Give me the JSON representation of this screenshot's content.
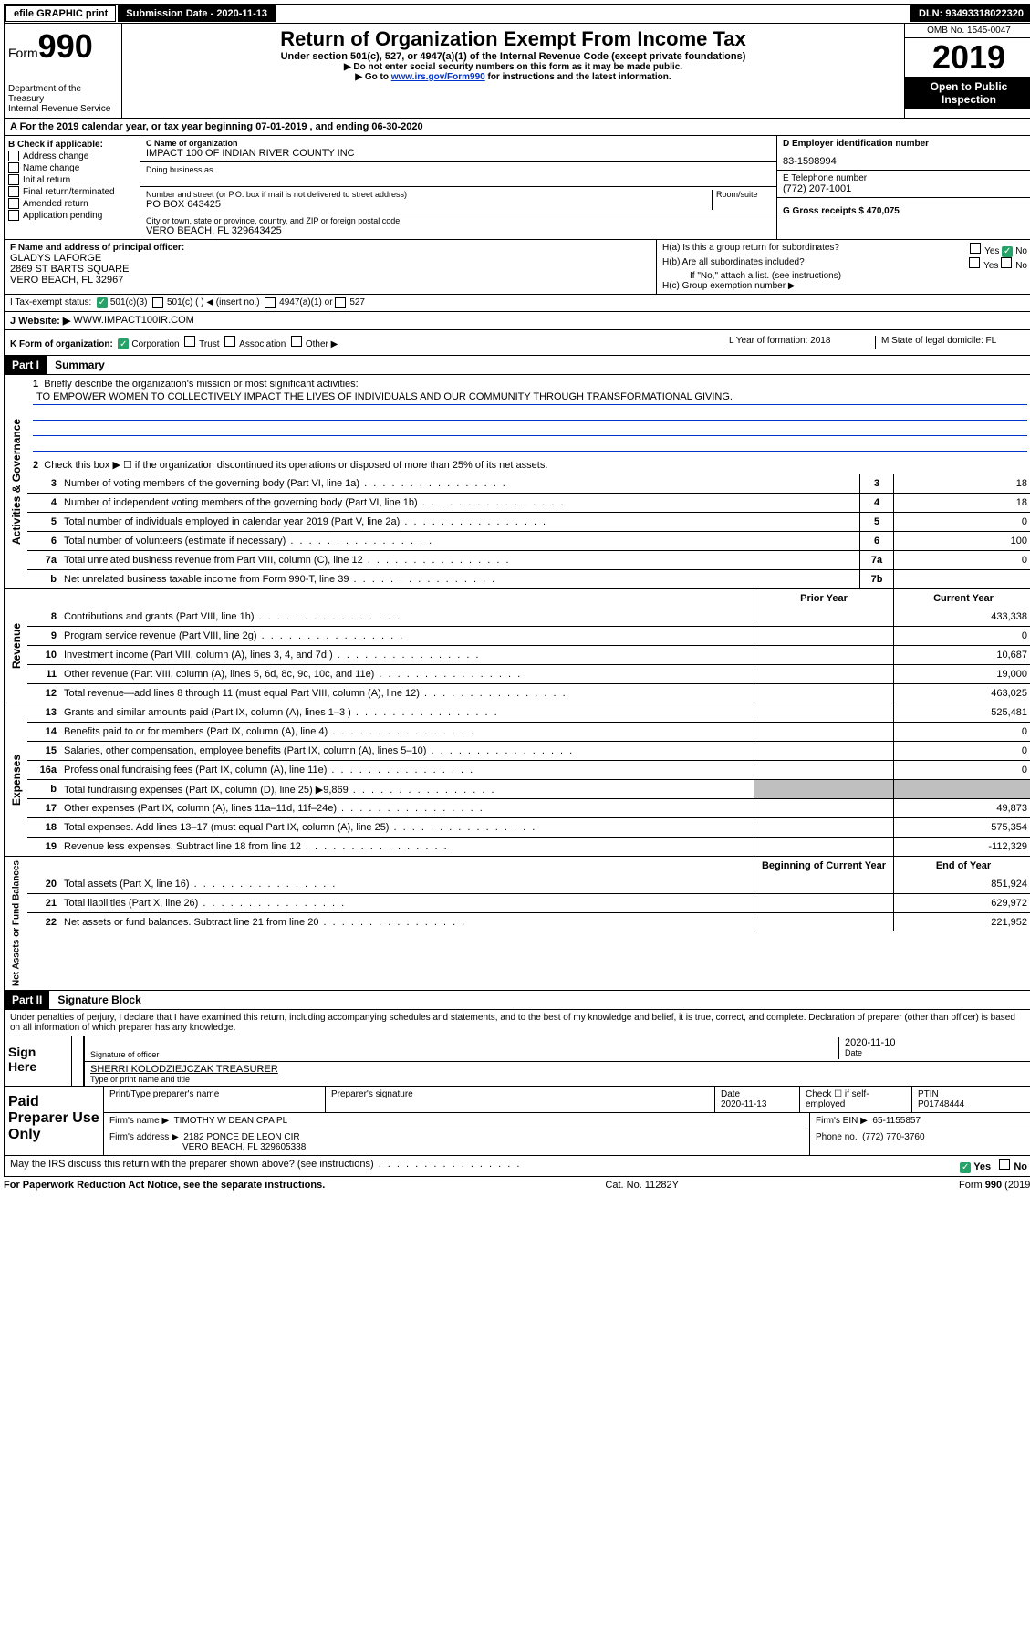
{
  "top": {
    "efile": "efile GRAPHIC print",
    "submission_label": "Submission Date - 2020-11-13",
    "dln": "DLN: 93493318022320"
  },
  "header": {
    "form_label": "Form",
    "form_num": "990",
    "dept1": "Department of the Treasury",
    "dept2": "Internal Revenue Service",
    "title": "Return of Organization Exempt From Income Tax",
    "subtitle": "Under section 501(c), 527, or 4947(a)(1) of the Internal Revenue Code (except private foundations)",
    "note1": "▶ Do not enter social security numbers on this form as it may be made public.",
    "note2_pre": "▶ Go to ",
    "note2_link": "www.irs.gov/Form990",
    "note2_post": " for instructions and the latest information.",
    "omb": "OMB No. 1545-0047",
    "year": "2019",
    "inspection": "Open to Public Inspection"
  },
  "section_a": "A For the 2019 calendar year, or tax year beginning 07-01-2019    , and ending 06-30-2020",
  "box_b": {
    "label": "B Check if applicable:",
    "opts": [
      "Address change",
      "Name change",
      "Initial return",
      "Final return/terminated",
      "Amended return",
      "Application pending"
    ]
  },
  "box_c": {
    "name_label": "C Name of organization",
    "name": "IMPACT 100 OF INDIAN RIVER COUNTY INC",
    "dba_label": "Doing business as",
    "addr_label": "Number and street (or P.O. box if mail is not delivered to street address)",
    "room_label": "Room/suite",
    "addr": "PO BOX 643425",
    "city_label": "City or town, state or province, country, and ZIP or foreign postal code",
    "city": "VERO BEACH, FL  329643425"
  },
  "box_d": {
    "ein_label": "D Employer identification number",
    "ein": "83-1598994",
    "phone_label": "E Telephone number",
    "phone": "(772) 207-1001",
    "gross_label": "G Gross receipts $ 470,075"
  },
  "box_f": {
    "label": "F Name and address of principal officer:",
    "name": "GLADYS LAFORGE",
    "addr1": "2869 ST BARTS SQUARE",
    "addr2": "VERO BEACH, FL  32967"
  },
  "box_h": {
    "ha": "H(a)  Is this a group return for subordinates?",
    "hb": "H(b)  Are all subordinates included?",
    "hb_note": "If \"No,\" attach a list. (see instructions)",
    "hc": "H(c)  Group exemption number ▶",
    "yes": "Yes",
    "no": "No"
  },
  "tax_exempt": {
    "label": "I    Tax-exempt status:",
    "c3": "501(c)(3)",
    "c_insert": "501(c) (   ) ◀ (insert no.)",
    "a1": "4947(a)(1) or",
    "five27": "527"
  },
  "website": {
    "label": "J   Website: ▶",
    "value": "WWW.IMPACT100IR.COM"
  },
  "box_k": {
    "label": "K Form of organization:",
    "corp": "Corporation",
    "trust": "Trust",
    "assoc": "Association",
    "other": "Other ▶",
    "l_label": "L Year of formation: 2018",
    "m_label": "M State of legal domicile: FL"
  },
  "part1": {
    "header": "Part I",
    "title": "Summary",
    "vert_gov": "Activities & Governance",
    "vert_rev": "Revenue",
    "vert_exp": "Expenses",
    "vert_net": "Net Assets or Fund Balances",
    "q1": "Briefly describe the organization's mission or most significant activities:",
    "mission": "TO EMPOWER WOMEN TO COLLECTIVELY IMPACT THE LIVES OF INDIVIDUALS AND OUR COMMUNITY THROUGH TRANSFORMATIONAL GIVING.",
    "q2": "Check this box ▶ ☐  if the organization discontinued its operations or disposed of more than 25% of its net assets.",
    "rows_gov": [
      {
        "n": "3",
        "d": "Number of voting members of the governing body (Part VI, line 1a)",
        "box": "3",
        "v": "18"
      },
      {
        "n": "4",
        "d": "Number of independent voting members of the governing body (Part VI, line 1b)",
        "box": "4",
        "v": "18"
      },
      {
        "n": "5",
        "d": "Total number of individuals employed in calendar year 2019 (Part V, line 2a)",
        "box": "5",
        "v": "0"
      },
      {
        "n": "6",
        "d": "Total number of volunteers (estimate if necessary)",
        "box": "6",
        "v": "100"
      },
      {
        "n": "7a",
        "d": "Total unrelated business revenue from Part VIII, column (C), line 12",
        "box": "7a",
        "v": "0"
      },
      {
        "n": "b",
        "d": "Net unrelated business taxable income from Form 990-T, line 39",
        "box": "7b",
        "v": ""
      }
    ],
    "col_prior": "Prior Year",
    "col_current": "Current Year",
    "rows_rev": [
      {
        "n": "8",
        "d": "Contributions and grants (Part VIII, line 1h)",
        "p": "",
        "c": "433,338"
      },
      {
        "n": "9",
        "d": "Program service revenue (Part VIII, line 2g)",
        "p": "",
        "c": "0"
      },
      {
        "n": "10",
        "d": "Investment income (Part VIII, column (A), lines 3, 4, and 7d )",
        "p": "",
        "c": "10,687"
      },
      {
        "n": "11",
        "d": "Other revenue (Part VIII, column (A), lines 5, 6d, 8c, 9c, 10c, and 11e)",
        "p": "",
        "c": "19,000"
      },
      {
        "n": "12",
        "d": "Total revenue—add lines 8 through 11 (must equal Part VIII, column (A), line 12)",
        "p": "",
        "c": "463,025"
      }
    ],
    "rows_exp": [
      {
        "n": "13",
        "d": "Grants and similar amounts paid (Part IX, column (A), lines 1–3 )",
        "p": "",
        "c": "525,481"
      },
      {
        "n": "14",
        "d": "Benefits paid to or for members (Part IX, column (A), line 4)",
        "p": "",
        "c": "0"
      },
      {
        "n": "15",
        "d": "Salaries, other compensation, employee benefits (Part IX, column (A), lines 5–10)",
        "p": "",
        "c": "0"
      },
      {
        "n": "16a",
        "d": "Professional fundraising fees (Part IX, column (A), line 11e)",
        "p": "",
        "c": "0"
      },
      {
        "n": "b",
        "d": "Total fundraising expenses (Part IX, column (D), line 25) ▶9,869",
        "p": "shaded",
        "c": "shaded"
      },
      {
        "n": "17",
        "d": "Other expenses (Part IX, column (A), lines 11a–11d, 11f–24e)",
        "p": "",
        "c": "49,873"
      },
      {
        "n": "18",
        "d": "Total expenses. Add lines 13–17 (must equal Part IX, column (A), line 25)",
        "p": "",
        "c": "575,354"
      },
      {
        "n": "19",
        "d": "Revenue less expenses. Subtract line 18 from line 12",
        "p": "",
        "c": "-112,329"
      }
    ],
    "col_begin": "Beginning of Current Year",
    "col_end": "End of Year",
    "rows_net": [
      {
        "n": "20",
        "d": "Total assets (Part X, line 16)",
        "p": "",
        "c": "851,924"
      },
      {
        "n": "21",
        "d": "Total liabilities (Part X, line 26)",
        "p": "",
        "c": "629,972"
      },
      {
        "n": "22",
        "d": "Net assets or fund balances. Subtract line 21 from line 20",
        "p": "",
        "c": "221,952"
      }
    ]
  },
  "part2": {
    "header": "Part II",
    "title": "Signature Block",
    "penalty": "Under penalties of perjury, I declare that I have examined this return, including accompanying schedules and statements, and to the best of my knowledge and belief, it is true, correct, and complete. Declaration of preparer (other than officer) is based on all information of which preparer has any knowledge.",
    "sign_here": "Sign Here",
    "sig_officer": "Signature of officer",
    "sig_date": "2020-11-10",
    "date_label": "Date",
    "officer_name": "SHERRI KOLODZIEJCZAK  TREASURER",
    "type_name": "Type or print name and title",
    "paid_label": "Paid Preparer Use Only",
    "prep_name_label": "Print/Type preparer's name",
    "prep_sig_label": "Preparer's signature",
    "prep_date_label": "Date",
    "prep_date": "2020-11-13",
    "check_self": "Check ☐ if self-employed",
    "ptin_label": "PTIN",
    "ptin": "P01748444",
    "firm_name_label": "Firm's name    ▶",
    "firm_name": "TIMOTHY W DEAN CPA PL",
    "firm_ein_label": "Firm's EIN ▶",
    "firm_ein": "65-1155857",
    "firm_addr_label": "Firm's address ▶",
    "firm_addr1": "2182 PONCE DE LEON CIR",
    "firm_addr2": "VERO BEACH, FL  329605338",
    "firm_phone_label": "Phone no.",
    "firm_phone": "(772) 770-3760",
    "discuss": "May the IRS discuss this return with the preparer shown above? (see instructions)",
    "yes": "Yes",
    "no": "No"
  },
  "footer": {
    "pra": "For Paperwork Reduction Act Notice, see the separate instructions.",
    "cat": "Cat. No. 11282Y",
    "form": "Form 990 (2019)"
  }
}
